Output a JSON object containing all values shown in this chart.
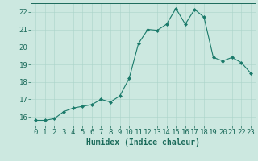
{
  "x": [
    0,
    1,
    2,
    3,
    4,
    5,
    6,
    7,
    8,
    9,
    10,
    11,
    12,
    13,
    14,
    15,
    16,
    17,
    18,
    19,
    20,
    21,
    22,
    23
  ],
  "y": [
    15.8,
    15.8,
    15.9,
    16.3,
    16.5,
    16.6,
    16.7,
    17.0,
    16.85,
    17.2,
    18.2,
    20.2,
    21.0,
    20.95,
    21.3,
    22.2,
    21.3,
    22.15,
    21.7,
    19.4,
    19.2,
    19.4,
    19.1,
    18.5
  ],
  "line_color": "#1a7a6a",
  "marker": "D",
  "marker_size": 2,
  "background_color": "#cce8e0",
  "grid_color": "#aad4ca",
  "xlabel": "Humidex (Indice chaleur)",
  "xlim": [
    -0.5,
    23.5
  ],
  "ylim": [
    15.5,
    22.5
  ],
  "yticks": [
    16,
    17,
    18,
    19,
    20,
    21,
    22
  ],
  "xticks": [
    0,
    1,
    2,
    3,
    4,
    5,
    6,
    7,
    8,
    9,
    10,
    11,
    12,
    13,
    14,
    15,
    16,
    17,
    18,
    19,
    20,
    21,
    22,
    23
  ],
  "tick_color": "#1a6a5a",
  "axis_color": "#1a6a5a",
  "xlabel_fontsize": 7,
  "tick_fontsize": 6.5
}
